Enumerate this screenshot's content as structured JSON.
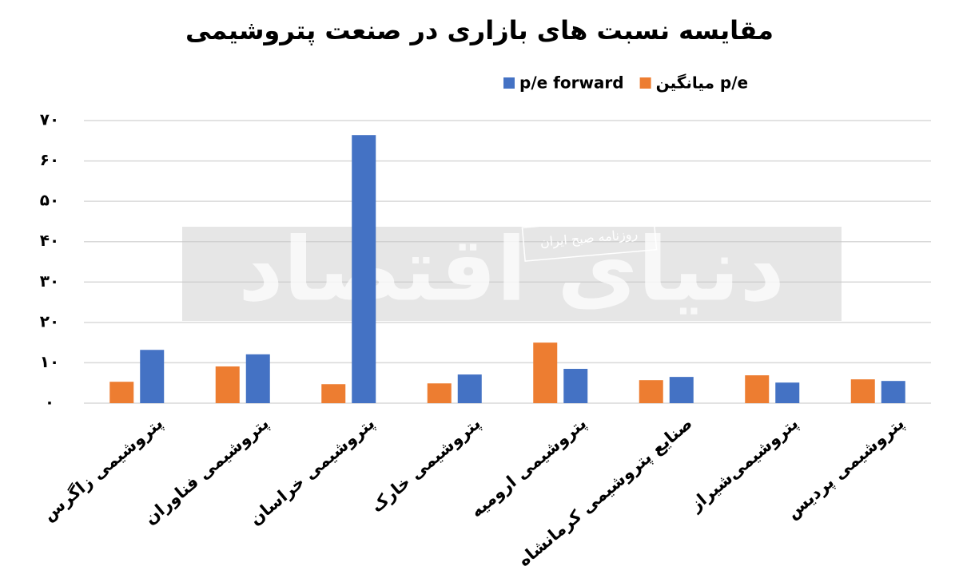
{
  "chart_data": {
    "type": "bar",
    "title": "مقایسه نسبت های بازاری در صنعت پتروشیمی",
    "categories": [
      "پتروشیمی زاگرس",
      "پتروشیمی فناوران",
      "پتروشیمی خراسان",
      "پتروشیمی خارک",
      "پتروشیمی ارومیه",
      "صنایع پتروشیمی کرمانشاه",
      "پتروشیمی‌شیراز",
      "پتروشیمی پردیس"
    ],
    "series": [
      {
        "name": "میانگین p/e",
        "color": "#ed7d31",
        "values": [
          5.3,
          9.1,
          4.7,
          4.9,
          15.0,
          5.7,
          6.9,
          5.9
        ]
      },
      {
        "name": "p/e forward",
        "color": "#4472c4",
        "values": [
          13.2,
          12.1,
          66.4,
          7.1,
          8.5,
          6.5,
          5.1,
          5.5
        ]
      }
    ],
    "ylim": [
      0,
      70
    ],
    "yticks": [
      {
        "value": 0,
        "label": "۰"
      },
      {
        "value": 10,
        "label": "۱۰"
      },
      {
        "value": 20,
        "label": "۲۰"
      },
      {
        "value": 30,
        "label": "۳۰"
      },
      {
        "value": 40,
        "label": "۴۰"
      },
      {
        "value": 50,
        "label": "۵۰"
      },
      {
        "value": 60,
        "label": "۶۰"
      },
      {
        "value": 70,
        "label": "۷۰"
      }
    ],
    "grid": true,
    "legend": "top",
    "watermark": {
      "brand": "دنیای اقتصاد",
      "tagline": "روزنامه صبح ایران"
    }
  }
}
